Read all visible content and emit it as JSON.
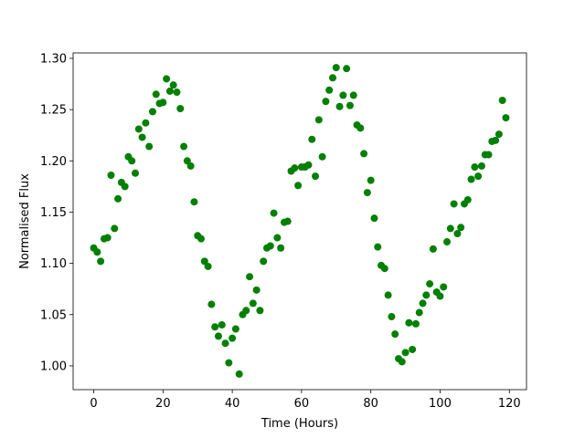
{
  "chart_data": {
    "type": "scatter",
    "x_label": "Time (Hours)",
    "y_label": "Normalised Flux",
    "color": "#008000",
    "xlim": [
      -5.95,
      124.95
    ],
    "ylim": [
      0.9768,
      1.3053
    ],
    "xticks": [
      0,
      20,
      40,
      60,
      80,
      100,
      120
    ],
    "yticks": [
      {
        "value": 1.0,
        "label": "1.00"
      },
      1.05,
      {
        "value": 1.1,
        "label": "1.10"
      },
      1.15,
      {
        "value": 1.2,
        "label": "1.20"
      },
      1.25,
      {
        "value": 1.3,
        "label": "1.30"
      }
    ],
    "x": [
      0,
      1,
      2,
      3,
      4,
      5,
      6,
      7,
      8,
      9,
      10,
      11,
      12,
      13,
      14,
      15,
      16,
      17,
      18,
      19,
      20,
      21,
      22,
      23,
      24,
      25,
      26,
      27,
      28,
      29,
      30,
      31,
      32,
      33,
      34,
      35,
      36,
      37,
      38,
      39,
      40,
      41,
      42,
      43,
      44,
      45,
      46,
      47,
      48,
      49,
      50,
      51,
      52,
      53,
      54,
      55,
      56,
      57,
      58,
      59,
      60,
      61,
      62,
      63,
      64,
      65,
      66,
      67,
      68,
      69,
      70,
      71,
      72,
      73,
      74,
      75,
      76,
      77,
      78,
      79,
      80,
      81,
      82,
      83,
      84,
      85,
      86,
      87,
      88,
      89,
      90,
      91,
      92,
      93,
      94,
      95,
      96,
      97,
      98,
      99,
      100,
      101,
      102,
      103,
      104,
      105,
      106,
      107,
      108,
      109,
      110,
      111,
      112,
      113,
      114,
      115,
      116,
      117,
      118,
      119
    ],
    "values": [
      1.115,
      1.111,
      1.102,
      1.124,
      1.125,
      1.186,
      1.134,
      1.163,
      1.179,
      1.175,
      1.204,
      1.2,
      1.188,
      1.231,
      1.223,
      1.237,
      1.214,
      1.248,
      1.265,
      1.256,
      1.257,
      1.28,
      1.268,
      1.274,
      1.267,
      1.251,
      1.214,
      1.2,
      1.195,
      1.16,
      1.127,
      1.124,
      1.102,
      1.097,
      1.06,
      1.038,
      1.029,
      1.04,
      1.022,
      1.003,
      1.027,
      1.036,
      0.992,
      1.05,
      1.054,
      1.087,
      1.061,
      1.074,
      1.054,
      1.102,
      1.115,
      1.117,
      1.149,
      1.125,
      1.115,
      1.14,
      1.141,
      1.19,
      1.193,
      1.176,
      1.194,
      1.194,
      1.196,
      1.221,
      1.185,
      1.24,
      1.204,
      1.258,
      1.269,
      1.281,
      1.291,
      1.253,
      1.264,
      1.29,
      1.254,
      1.264,
      1.235,
      1.232,
      1.207,
      1.169,
      1.181,
      1.144,
      1.116,
      1.098,
      1.095,
      1.069,
      1.048,
      1.031,
      1.007,
      1.004,
      1.013,
      1.042,
      1.016,
      1.041,
      1.052,
      1.061,
      1.069,
      1.08,
      1.114,
      1.072,
      1.068,
      1.077,
      1.121,
      1.134,
      1.158,
      1.129,
      1.135,
      1.158,
      1.162,
      1.182,
      1.194,
      1.185,
      1.195,
      1.206,
      1.206,
      1.219,
      1.22,
      1.226,
      1.259,
      1.242
    ]
  }
}
